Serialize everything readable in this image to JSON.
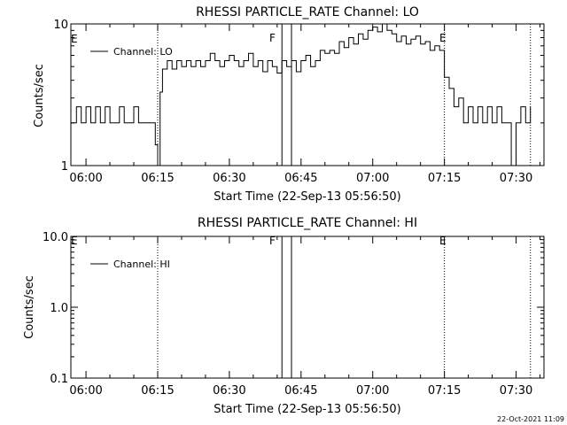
{
  "footer_timestamp": "22-Oct-2021 11:09",
  "chart_data": [
    {
      "type": "line",
      "title": "RHESSI PARTICLE_RATE Channel: LO",
      "xlabel": "Start Time (22-Sep-13 05:56:50)",
      "ylabel": "Counts/sec",
      "y_scale": "log",
      "ylim": [
        1,
        10
      ],
      "y_ticks": [
        "1",
        "10"
      ],
      "x_range_minutes_after_start": [
        0,
        99
      ],
      "x_tick_labels": [
        "06:00",
        "06:15",
        "06:30",
        "06:45",
        "07:00",
        "07:15",
        "07:30"
      ],
      "legend": {
        "label": "Channel: LO",
        "position": "top-left"
      },
      "markers": [
        {
          "label": "E",
          "time": "05:56:50",
          "line": "none"
        },
        {
          "label": "",
          "time": "06:15",
          "line": "dotted"
        },
        {
          "label": "F",
          "time": "06:41",
          "line": "solid"
        },
        {
          "label": "",
          "time": "06:43",
          "line": "solid"
        },
        {
          "label": "E",
          "time": "07:15",
          "line": "dotted"
        },
        {
          "label": "",
          "time": "07:33",
          "line": "dotted"
        }
      ],
      "series": [
        {
          "name": "Channel: LO",
          "x": [
            "05:56:50",
            "05:58:00",
            "05:59:00",
            "06:00:00",
            "06:01:00",
            "06:02:00",
            "06:03:00",
            "06:04:00",
            "06:05:00",
            "06:06:00",
            "06:07:00",
            "06:08:00",
            "06:09:00",
            "06:10:00",
            "06:11:00",
            "06:12:00",
            "06:13:00",
            "06:14:00",
            "06:14:30",
            "06:15:00",
            "06:15:30",
            "06:16:00",
            "06:17:00",
            "06:18:00",
            "06:19:00",
            "06:20:00",
            "06:21:00",
            "06:22:00",
            "06:23:00",
            "06:24:00",
            "06:25:00",
            "06:26:00",
            "06:27:00",
            "06:28:00",
            "06:29:00",
            "06:30:00",
            "06:31:00",
            "06:32:00",
            "06:33:00",
            "06:34:00",
            "06:35:00",
            "06:36:00",
            "06:37:00",
            "06:38:00",
            "06:39:00",
            "06:40:00",
            "06:41:00",
            "06:42:00",
            "06:43:00",
            "06:44:00",
            "06:45:00",
            "06:46:00",
            "06:47:00",
            "06:48:00",
            "06:49:00",
            "06:50:00",
            "06:51:00",
            "06:52:00",
            "06:53:00",
            "06:54:00",
            "06:55:00",
            "06:56:00",
            "06:57:00",
            "06:58:00",
            "06:59:00",
            "07:00:00",
            "07:01:00",
            "07:02:00",
            "07:03:00",
            "07:04:00",
            "07:05:00",
            "07:06:00",
            "07:07:00",
            "07:08:00",
            "07:09:00",
            "07:10:00",
            "07:11:00",
            "07:12:00",
            "07:13:00",
            "07:14:00",
            "07:15:00",
            "07:16:00",
            "07:17:00",
            "07:18:00",
            "07:19:00",
            "07:20:00",
            "07:21:00",
            "07:22:00",
            "07:23:00",
            "07:24:00",
            "07:25:00",
            "07:26:00",
            "07:27:00",
            "07:28:00",
            "07:29:00",
            "07:30:00",
            "07:31:00",
            "07:32:00",
            "07:33:00"
          ],
          "values": [
            2.0,
            2.6,
            2.0,
            2.6,
            2.0,
            2.6,
            2.0,
            2.6,
            2.0,
            2.0,
            2.6,
            2.0,
            2.0,
            2.6,
            2.0,
            2.0,
            2.0,
            2.0,
            1.4,
            1.0,
            3.3,
            4.8,
            5.5,
            4.8,
            5.5,
            5.0,
            5.5,
            5.0,
            5.5,
            5.0,
            5.5,
            6.2,
            5.5,
            5.0,
            5.5,
            6.0,
            5.5,
            5.0,
            5.5,
            6.2,
            5.0,
            5.5,
            4.6,
            5.5,
            5.0,
            4.5,
            5.5,
            5.0,
            5.5,
            4.6,
            5.5,
            6.0,
            5.0,
            5.5,
            6.5,
            6.2,
            6.5,
            6.2,
            7.5,
            6.8,
            8.0,
            7.2,
            8.5,
            7.8,
            9.0,
            9.5,
            8.8,
            10.0,
            9.0,
            8.5,
            7.5,
            8.2,
            7.2,
            7.8,
            8.2,
            7.2,
            7.5,
            6.5,
            7.0,
            6.5,
            4.2,
            3.5,
            2.6,
            3.0,
            2.0,
            2.6,
            2.0,
            2.6,
            2.0,
            2.6,
            2.0,
            2.6,
            2.0,
            2.0,
            1.0,
            2.0,
            2.6,
            2.0,
            2.6
          ]
        }
      ]
    },
    {
      "type": "line",
      "title": "RHESSI PARTICLE_RATE Channel: HI",
      "xlabel": "Start Time (22-Sep-13 05:56:50)",
      "ylabel": "Counts/sec",
      "y_scale": "log",
      "ylim": [
        0.1,
        10
      ],
      "y_ticks": [
        "0.1",
        "1.0",
        "10.0"
      ],
      "x_range_minutes_after_start": [
        0,
        99
      ],
      "x_tick_labels": [
        "06:00",
        "06:15",
        "06:30",
        "06:45",
        "07:00",
        "07:15",
        "07:30"
      ],
      "legend": {
        "label": "Channel: HI",
        "position": "top-left"
      },
      "markers": [
        {
          "label": "E",
          "time": "05:56:50",
          "line": "none"
        },
        {
          "label": "",
          "time": "06:15",
          "line": "dotted"
        },
        {
          "label": "F",
          "time": "06:41",
          "line": "solid"
        },
        {
          "label": "",
          "time": "06:43",
          "line": "solid"
        },
        {
          "label": "E",
          "time": "07:15",
          "line": "dotted"
        },
        {
          "label": "",
          "time": "07:33",
          "line": "dotted"
        }
      ],
      "series": [
        {
          "name": "Channel: HI",
          "x": [],
          "values": []
        }
      ]
    }
  ]
}
